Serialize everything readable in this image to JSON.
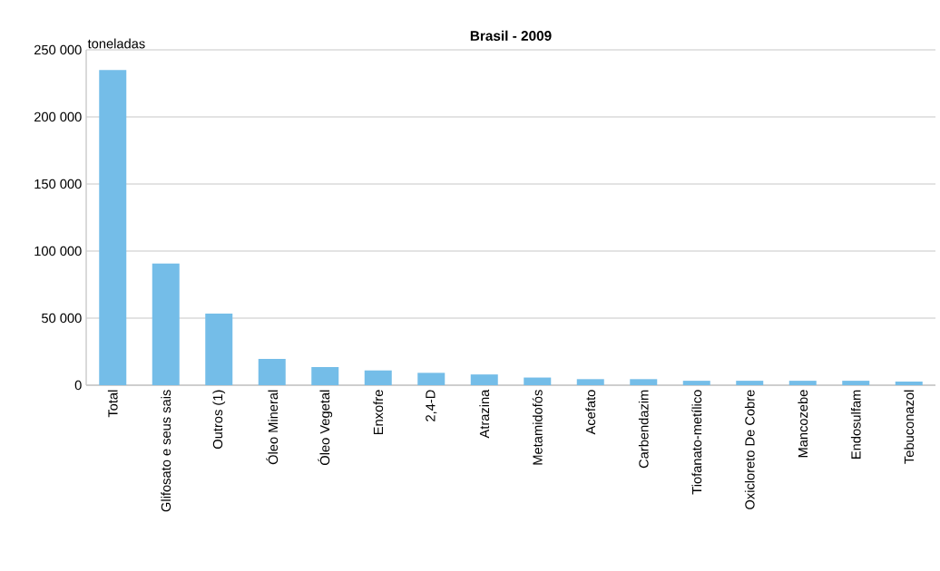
{
  "chart_data": {
    "type": "bar",
    "title": "Brasil - 2009",
    "ylabel": "toneladas",
    "categories": [
      "Total",
      "Glifosato e seus sais",
      "Outros (1)",
      "Óleo Mineral",
      "Óleo Vegetal",
      "Enxofre",
      "2,4-D",
      "Atrazina",
      "Metamidofós",
      "Acefato",
      "Carbendazim",
      "Tiofanato-metílico",
      "Oxicloreto De Cobre",
      "Mancozebe",
      "Endosulfam",
      "Tebuconazol"
    ],
    "values": [
      235000,
      90700,
      53300,
      19600,
      13500,
      11000,
      9200,
      8000,
      5700,
      4500,
      4500,
      3300,
      3300,
      3300,
      3300,
      2700
    ],
    "color": "#74bde8",
    "ylim": [
      0,
      250000
    ],
    "yticks": [
      {
        "value": 0,
        "label": "0"
      },
      {
        "value": 50000,
        "label": "50 000"
      },
      {
        "value": 100000,
        "label": "100 000"
      },
      {
        "value": 150000,
        "label": "150 000"
      },
      {
        "value": 200000,
        "label": "200 000"
      },
      {
        "value": 250000,
        "label": "250 000"
      }
    ],
    "grid": "y"
  }
}
